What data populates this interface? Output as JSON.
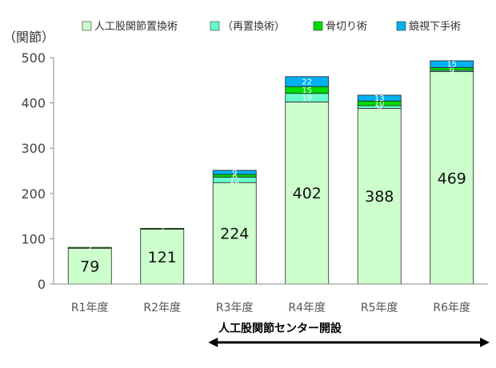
{
  "chart_data": {
    "type": "bar",
    "stacked": true,
    "ylabel": "（関節）",
    "ylim": [
      0,
      500
    ],
    "yticks": [
      0,
      100,
      200,
      300,
      400,
      500
    ],
    "grid": false,
    "legend_position": "top",
    "categories": [
      "R1年度",
      "R2年度",
      "R3年度",
      "R4年度",
      "R5年度",
      "R6年度"
    ],
    "series": [
      {
        "name": "人工股関節置換術",
        "color": "#ccffcc",
        "values": [
          79,
          121,
          224,
          402,
          388,
          469
        ],
        "labels": [
          "79",
          "121",
          "224",
          "402",
          "388",
          "469"
        ]
      },
      {
        "name": "（再置換術）",
        "color": "#66ffcc",
        "values": [
          0,
          0,
          12,
          19,
          6,
          3
        ],
        "labels": [
          "",
          "",
          "12",
          "19",
          "6",
          "3"
        ]
      },
      {
        "name": "骨切り術",
        "color": "#00dd00",
        "values": [
          2,
          2,
          6,
          15,
          10,
          6
        ],
        "labels": [
          "2",
          "2",
          "6",
          "15",
          "10",
          "6"
        ]
      },
      {
        "name": "鏡視下手術",
        "color": "#00b0f0",
        "values": [
          0,
          0,
          9,
          22,
          13,
          15
        ],
        "labels": [
          "",
          "",
          "9",
          "22",
          "13",
          "15"
        ]
      }
    ],
    "annotation": {
      "text": "人工股関節センター開設",
      "from_category": "R3年度",
      "to_category": "R6年度"
    }
  }
}
